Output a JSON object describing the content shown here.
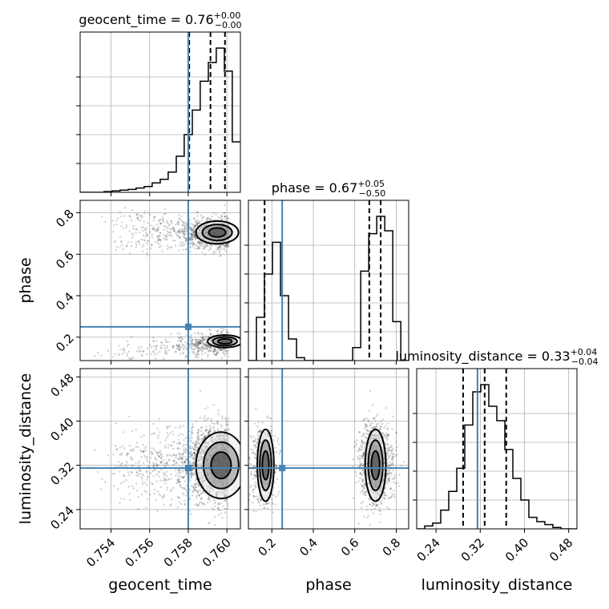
{
  "chart_data": {
    "type": "corner",
    "parameters": [
      "geocent_time",
      "phase",
      "luminosity_distance"
    ],
    "titles": [
      {
        "param": "geocent_time",
        "median": "0.76",
        "plus": "+0.00",
        "minus": "−0.00"
      },
      {
        "param": "phase",
        "median": "0.67",
        "plus": "+0.05",
        "minus": "−0.50"
      },
      {
        "param": "luminosity_distance",
        "median": "0.33",
        "plus": "+0.04",
        "minus": "−0.04"
      }
    ],
    "ranges": {
      "geocent_time": [
        0.7524,
        0.7607
      ],
      "phase": [
        0.087,
        0.86
      ],
      "luminosity_distance": [
        0.205,
        0.495
      ]
    },
    "ticks": {
      "geocent_time": [
        "0.754",
        "0.756",
        "0.758",
        "0.760"
      ],
      "phase": [
        "0.2",
        "0.4",
        "0.6",
        "0.8"
      ],
      "luminosity_distance": [
        "0.24",
        "0.32",
        "0.40",
        "0.48"
      ]
    },
    "truths": {
      "geocent_time": 0.758,
      "phase": 0.25,
      "luminosity_distance": 0.315
    },
    "quantiles": {
      "geocent_time": [
        0.75805,
        0.75915,
        0.7599
      ],
      "phase": [
        0.165,
        0.67,
        0.725
      ],
      "luminosity_distance": [
        0.289,
        0.328,
        0.367
      ]
    },
    "histograms": {
      "geocent_time": {
        "edges": [
          0.7524,
          0.75281,
          0.75323,
          0.75364,
          0.75406,
          0.75447,
          0.75489,
          0.7553,
          0.75572,
          0.75613,
          0.75655,
          0.75696,
          0.75738,
          0.75779,
          0.75821,
          0.75862,
          0.75904,
          0.75945,
          0.75987,
          0.76028,
          0.7607
        ],
        "values": [
          0.0,
          0.0,
          0.0,
          0.005,
          0.01,
          0.015,
          0.02,
          0.03,
          0.04,
          0.065,
          0.09,
          0.14,
          0.25,
          0.4,
          0.57,
          0.77,
          0.9,
          1.0,
          0.84,
          0.35
        ]
      },
      "phase": {
        "edges": [
          0.087,
          0.1257,
          0.1644,
          0.2031,
          0.2418,
          0.2805,
          0.3191,
          0.3578,
          0.3965,
          0.4352,
          0.4739,
          0.5126,
          0.5513,
          0.59,
          0.6287,
          0.6674,
          0.7061,
          0.7447,
          0.7834,
          0.8221,
          0.86
        ],
        "values": [
          0.0,
          0.3,
          0.6,
          0.82,
          0.45,
          0.15,
          0.02,
          0.0,
          0.0,
          0.0,
          0.0,
          0.0,
          0.0,
          0.09,
          0.62,
          0.88,
          1.0,
          0.9,
          0.27,
          0.0
        ]
      },
      "luminosity_distance": {
        "edges": [
          0.205,
          0.2195,
          0.234,
          0.2485,
          0.263,
          0.2775,
          0.292,
          0.3065,
          0.321,
          0.3355,
          0.35,
          0.3645,
          0.379,
          0.3935,
          0.408,
          0.4225,
          0.437,
          0.4515,
          0.466,
          0.4805,
          0.495
        ],
        "values": [
          0.0,
          0.02,
          0.04,
          0.13,
          0.26,
          0.42,
          0.72,
          0.95,
          1.0,
          0.85,
          0.75,
          0.55,
          0.35,
          0.2,
          0.08,
          0.05,
          0.03,
          0.01,
          0.0,
          0.0
        ]
      }
    },
    "grid": true
  }
}
